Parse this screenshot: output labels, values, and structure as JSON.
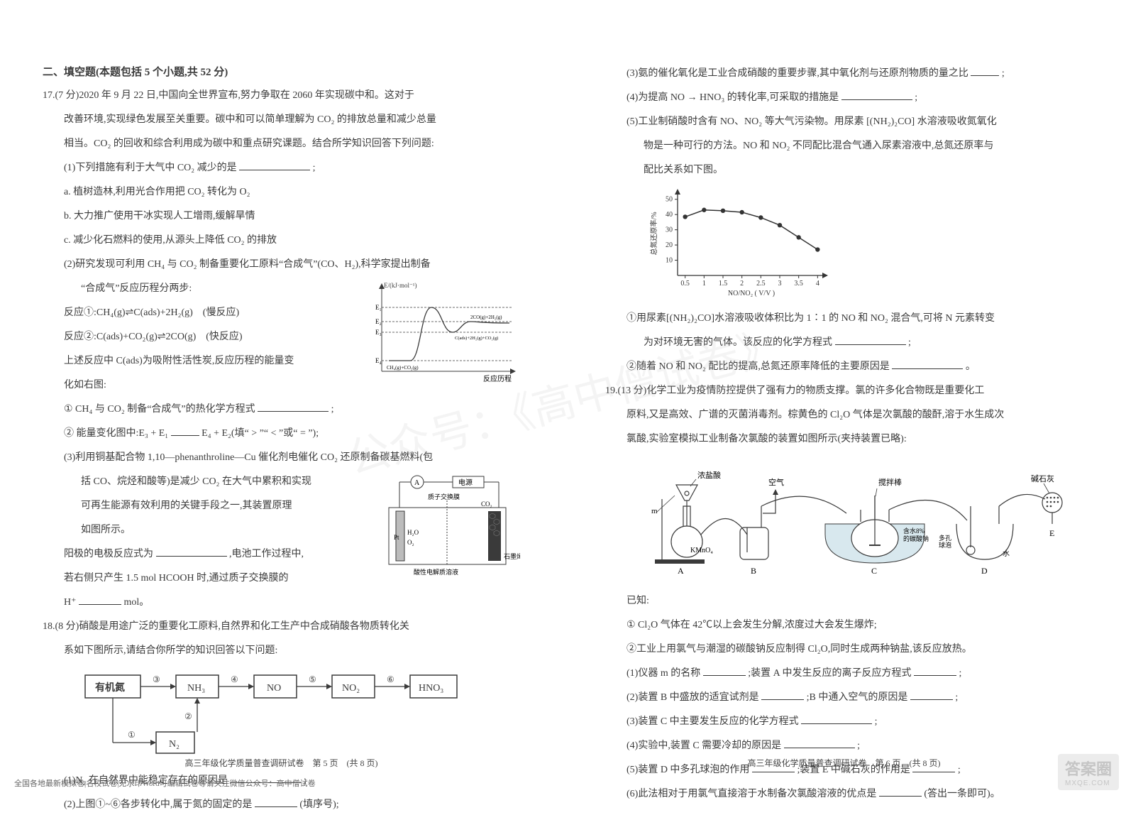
{
  "section_heading": "二、填空题(本题包括 5 个小题,共 52 分)",
  "q17": {
    "head": "17.(7 分)2020 年 9 月 22 日,中国向全世界宣布,努力争取在 2060 年实现碳中和。这对于",
    "l2": "改善环境,实现绿色发展至关重要。碳中和可以简单理解为 CO₂ 的排放总量和减少总量",
    "l3": "相当。CO₂ 的回收和综合利用成为碳中和重点研究课题。结合所学知识回答下列问题:",
    "p1": "(1)下列措施有利于大气中 CO₂ 减少的是",
    "p1tail": ";",
    "a": "a. 植树造林,利用光合作用把 CO₂ 转化为 O₂",
    "b": "b. 大力推广使用干冰实现人工增雨,缓解旱情",
    "c": "c. 减少化石燃料的使用,从源头上降低 CO₂ 的排放",
    "p2": "(2)研究发现可利用 CH₄ 与 CO₂ 制备重要化工原料“合成气”(CO、H₂),科学家提出制备",
    "p2b": "“合成气”反应历程分两步:",
    "r1": "反应①:CH₄(g)⇌C(ads)+2H₂(g)　(慢反应)",
    "r2": "反应②:C(ads)+CO₂(g)⇌2CO(g)　(快反应)",
    "r3": "上述反应中 C(ads)为吸附性活性炭,反应历程的能量变",
    "r3b": "化如右图:",
    "q2_1": "① CH₄ 与 CO₂ 制备“合成气”的热化学方程式",
    "q2_1tail": ";",
    "q2_2a": "② 能量变化图中:E₃ + E₁",
    "q2_2b": "E₄ + E₂(填“ > ”“ < ”或“ = ”);",
    "p3a": "(3)利用铜基配合物 1,10—phenanthroline—Cu 催化剂电催化 CO₂ 还原制备碳基燃料(包",
    "p3b": "括 CO、烷烃和酸等)是减少 CO₂ 在大气中累积和实现",
    "p3c": "可再生能源有效利用的关键手段之一,其装置原理",
    "p3d": "如图所示。",
    "p3e": "阳极的电极反应式为",
    "p3e2": ",电池工作过程中,",
    "p3f": "若右侧只产生 1.5 mol HCOOH 时,通过质子交换膜的",
    "p3g_pre": "H⁺",
    "p3g_tail": "mol。",
    "energy_fig": {
      "ylabel": "E/(kJ·mol⁻¹)",
      "labels": [
        "E₁",
        "E₂",
        "E₃",
        "E₄"
      ],
      "left_txt": "CH₄(g)+CO₂(g)",
      "mid_txt": "C(ads)+2H₂(g)+CO₂(g)",
      "right_txt": "2CO(g)+2H₂(g)",
      "xlabel": "反应历程",
      "bg": "#ffffff",
      "line": "#3a3a3a"
    },
    "electro_fig": {
      "labels": {
        "top": "电源",
        "a": "A",
        "pt": "Pt",
        "mem": "质子交换膜",
        "ac": "酸性电解质溶液",
        "r1": "CO₂",
        "r2": "石墨烯",
        "l1": "H₂O",
        "l2": "O₂"
      },
      "line": "#3a3a3a"
    }
  },
  "q18": {
    "head": "18.(8 分)硝酸是用途广泛的重要化工原料,自然界和化工生产中合成硝酸各物质转化关",
    "head2": "系如下图所示,请结合你所学的知识回答以下问题:",
    "boxes": [
      "有机氮",
      "NH₃",
      "NO",
      "NO₂",
      "HNO₃",
      "N₂"
    ],
    "arrows": [
      "①",
      "②",
      "③",
      "④",
      "⑤",
      "⑥"
    ],
    "p1": "(1)N₂ 在自然界中能稳定存在的原因是",
    "p1tail": ";",
    "p2a": "(2)上图①~⑥各步转化中,属于氮的固定的是",
    "p2b": "(填序号);"
  },
  "q18r": {
    "p3a": "(3)氨的催化氧化是工业合成硝酸的重要步骤,其中氧化剂与还原剂物质的量之比",
    "p3tail": ";",
    "p4": "(4)为提高 NO → HNO₃ 的转化率,可采取的措施是",
    "p4tail": ";",
    "p5a": "(5)工业制硝酸时含有 NO、NO₂ 等大气污染物。用尿素 [(NH₂)₂CO] 水溶液吸收氮氧化",
    "p5b": "物是一种可行的方法。NO 和 NO₂ 不同配比混合气通入尿素溶液中,总氮还原率与",
    "p5c": "配比关系如下图。",
    "chart": {
      "type": "line",
      "xlabel": "NO/NO₂ ( V/V )",
      "ylabel": "总氮还原率/%",
      "xticks": [
        0.5,
        1,
        1.5,
        2,
        2.5,
        3,
        3.5,
        4
      ],
      "yticks": [
        10,
        20,
        30,
        40,
        50
      ],
      "ylim": [
        0,
        55
      ],
      "points": [
        [
          0.5,
          38.5
        ],
        [
          1,
          43
        ],
        [
          1.5,
          42.5
        ],
        [
          2,
          41.5
        ],
        [
          2.5,
          38
        ],
        [
          3,
          33
        ],
        [
          3.5,
          25
        ],
        [
          4,
          17
        ]
      ],
      "line_color": "#333333",
      "marker": "circle",
      "marker_fill": "#333333",
      "bg": "#ffffff",
      "axis_color": "#333333",
      "font_size": 10
    },
    "sub1a": "①用尿素[(NH₂)₂CO]水溶液吸收体积比为 1∶1 的 NO 和 NO₂ 混合气,可将 N 元素转变",
    "sub1b": "为对环境无害的气体。该反应的化学方程式",
    "sub1tail": ";",
    "sub2": "②随着 NO 和 NO₂ 配比的提高,总氮还原率降低的主要原因是",
    "sub2tail": "。"
  },
  "q19": {
    "head": "19.(13 分)化学工业为疫情防控提供了强有力的物质支撑。氯的许多化合物既是重要化工",
    "l2": "原料,又是高效、广谱的灭菌消毒剂。棕黄色的 Cl₂O 气体是次氯酸的酸酐,溶于水生成次",
    "l3": "氯酸,实验室模拟工业制备次氯酸的装置如图所示(夹持装置已略):",
    "known": "已知:",
    "k1": "① Cl₂O 气体在 42℃以上会发生分解,浓度过大会发生爆炸;",
    "k2": "②工业上用氯气与潮湿的碳酸钠反应制得 Cl₂O,同时生成两种钠盐,该反应放热。",
    "p1a": "(1)仪器 m 的名称",
    "p1b": ";装置 A 中发生反应的离子反应方程式",
    "p1tail": ";",
    "p2a": "(2)装置 B 中盛放的适宜试剂是",
    "p2b": ";B 中通入空气的原因是",
    "p2tail": ";",
    "p3": "(3)装置 C 中主要发生反应的化学方程式",
    "p3tail": ";",
    "p4": "(4)实验中,装置 C 需要冷却的原因是",
    "p4tail": ";",
    "p5a": "(5)装置 D 中多孔球泡的作用",
    "p5b": ";装置 E 中碱石灰的作用是",
    "p5tail": ";",
    "p6a": "(6)此法相对于用氯气直接溶于水制备次氯酸溶液的优点是",
    "p6b": "(答出一条即可)。",
    "apparatus_labels": {
      "hcl": "浓盐酸",
      "air": "空气",
      "stir": "搅拌棒",
      "lime": "碱石灰",
      "kmno4": "KMnO₄",
      "m": "m",
      "nacarb": "含水8%\\n的碳酸钠",
      "bubble": "多孔\\n球泡",
      "water": "水",
      "A": "A",
      "B": "B",
      "C": "C",
      "D": "D",
      "E": "E"
    }
  },
  "footer_left": "高三年级化学质量普查调研试卷　第 5 页　(共 8 页)",
  "footer_right": "高三年级化学质量普查调研试卷　第 6 页　(共 8 页)",
  "footer_note": "全国各地最新模拟卷|名校试卷|无水印Word可编辑试卷等请关注微信公众号：高中僧试卷",
  "watermark_center": "公众号：《高中僧试卷》",
  "watermark_corner": "答案圈\\nMXQE.COM"
}
